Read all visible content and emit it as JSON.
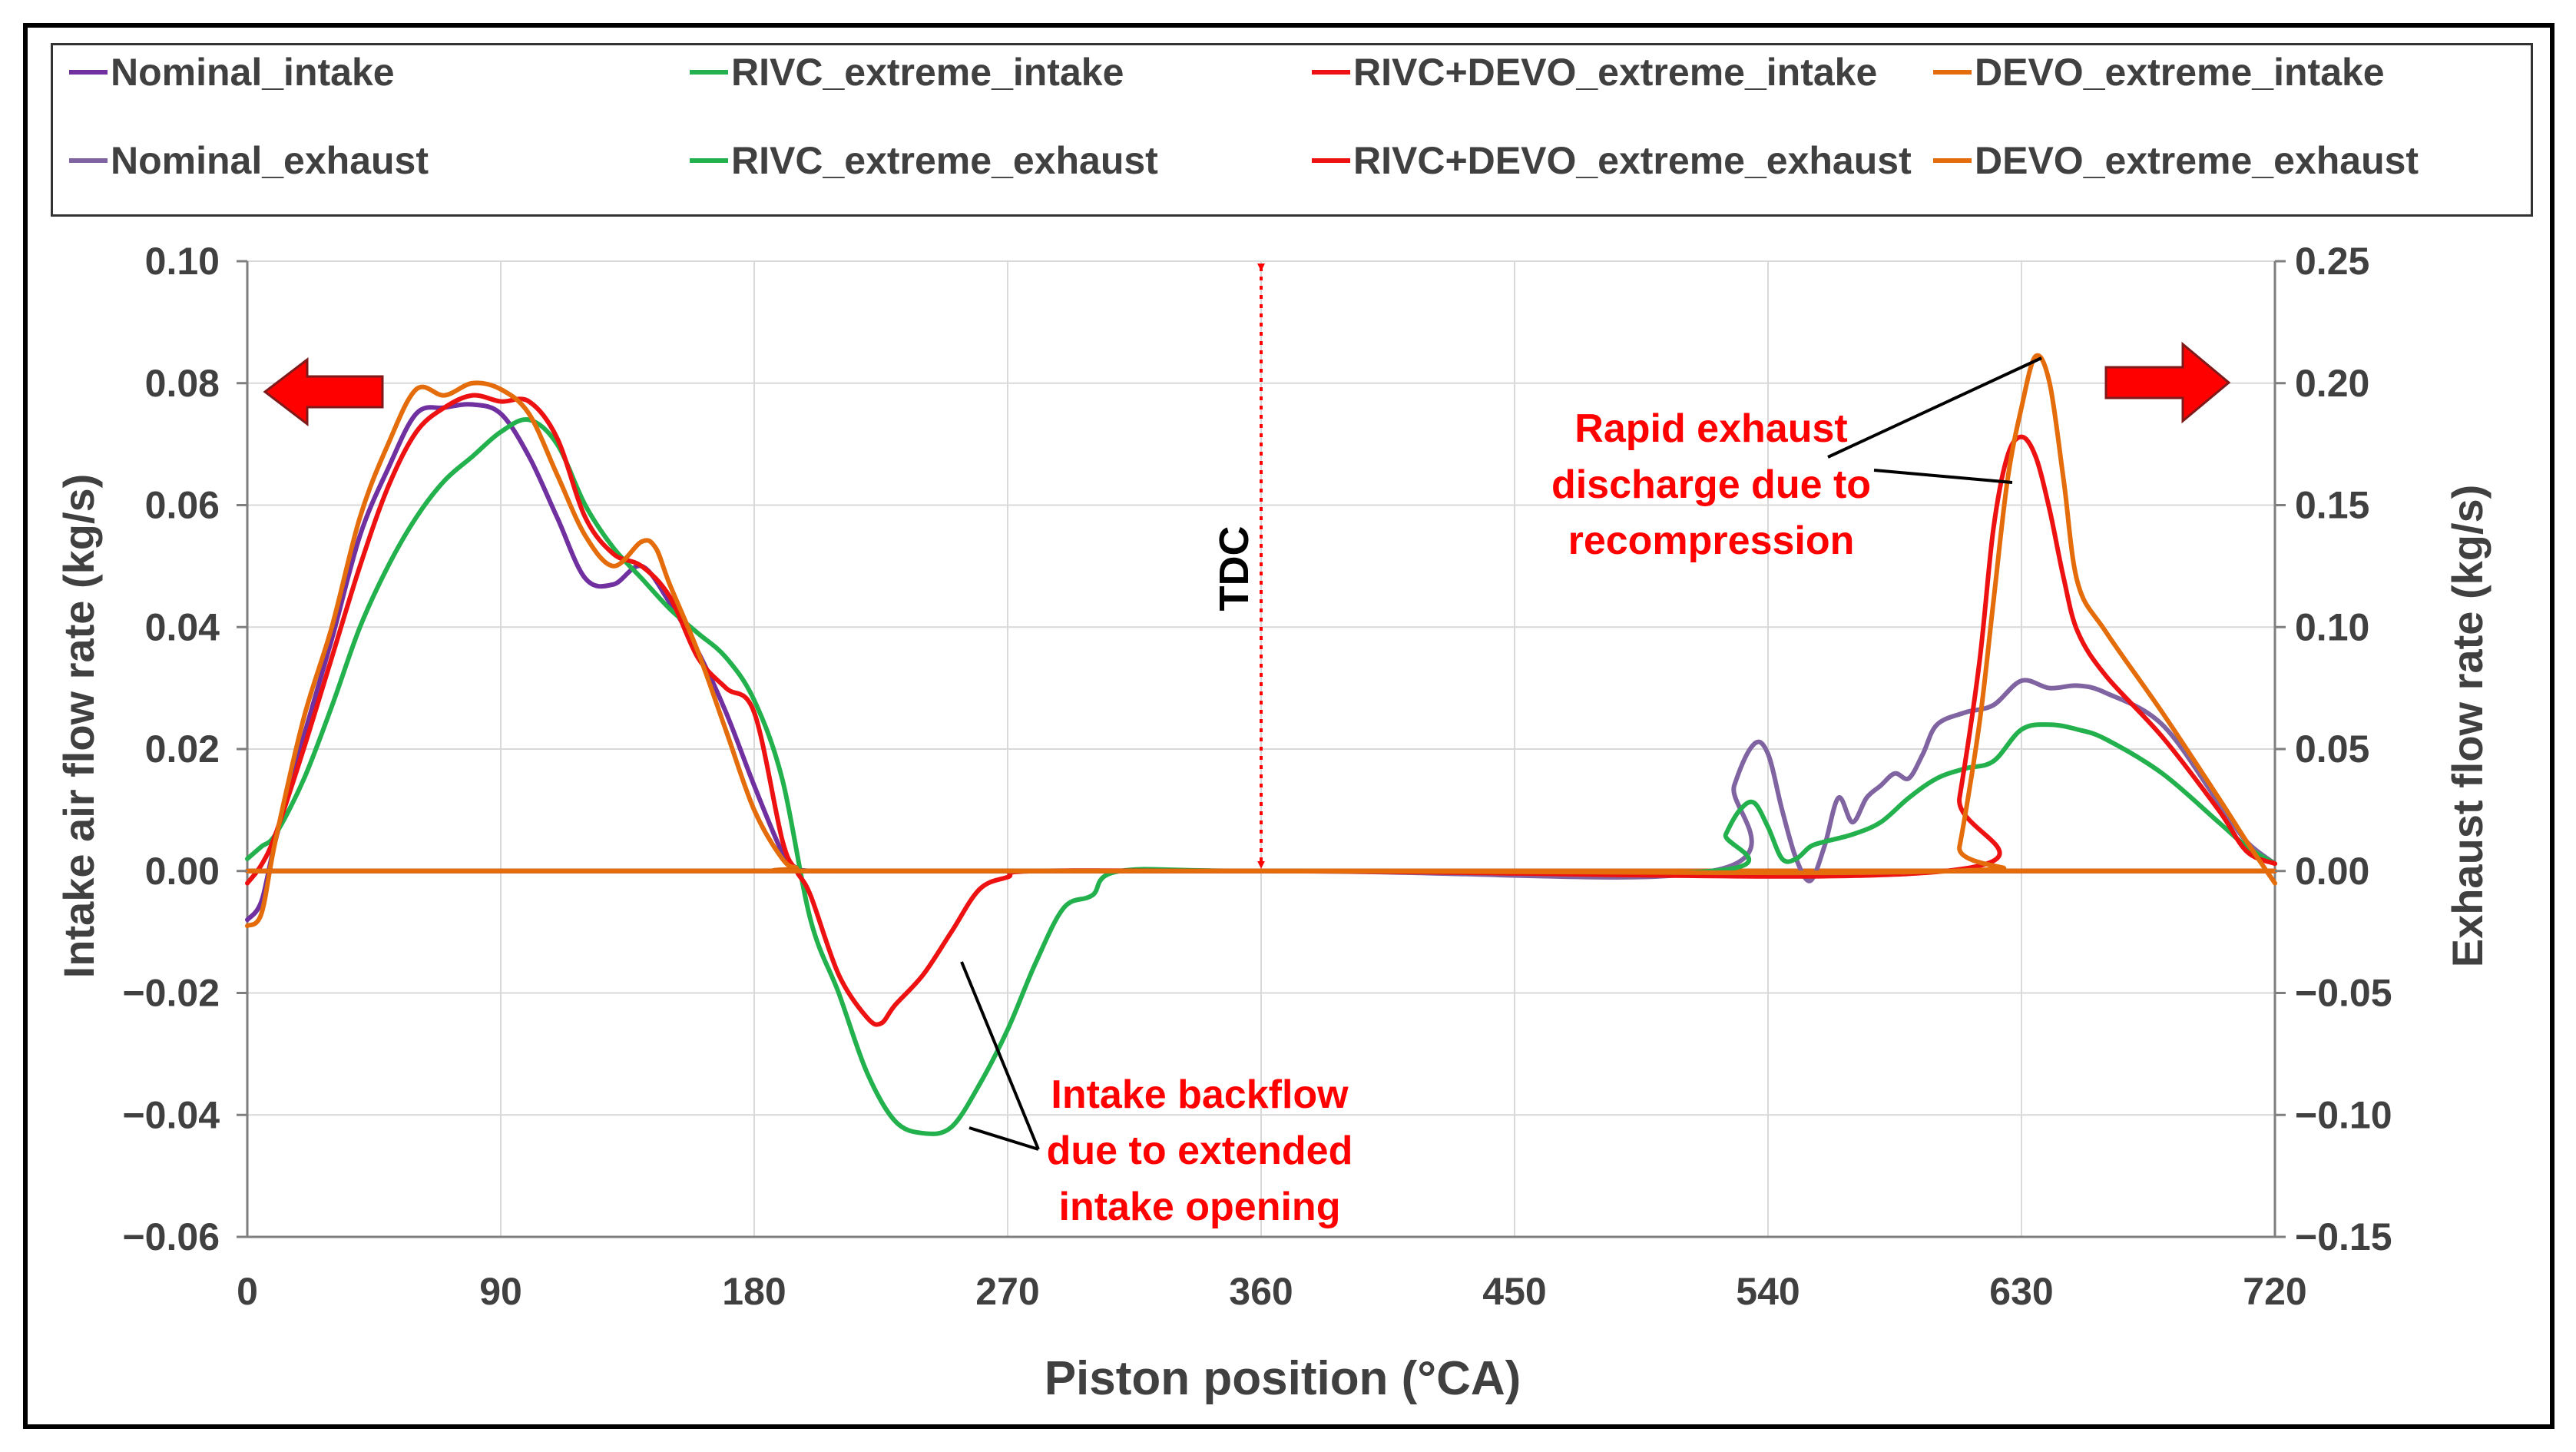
{
  "chart_data": {
    "type": "line",
    "xlabel": "Piston position (°CA)",
    "ylabel_left": "Intake air flow rate (kg/s)",
    "ylabel_right": "Exhaust flow rate (kg/s)",
    "xlim": [
      0,
      720
    ],
    "ylim_left": [
      -0.06,
      0.1
    ],
    "ylim_right": [
      -0.15,
      0.25
    ],
    "x_ticks": [
      "0",
      "90",
      "180",
      "270",
      "360",
      "450",
      "540",
      "630",
      "720"
    ],
    "y_ticks_left": [
      "0.10",
      "0.08",
      "0.06",
      "0.04",
      "0.02",
      "0.00",
      "−0.02",
      "−0.04",
      "−0.06"
    ],
    "y_ticks_right": [
      "0.25",
      "0.20",
      "0.15",
      "0.10",
      "0.05",
      "0.00",
      "−0.05",
      "−0.10",
      "−0.15"
    ],
    "grid": true,
    "legend_position": "top",
    "legend": [
      "Nominal_intake",
      "RIVC_extreme_intake",
      "RIVC+DEVO_extreme_intake",
      "DEVO_extreme_intake",
      "Nominal_exhaust",
      "RIVC_extreme_exhaust",
      "RIVC+DEVO_extreme_exhaust",
      "DEVO_extreme_exhaust"
    ],
    "colors": {
      "nominal_intake": "#7030a0",
      "nominal_exhaust": "#8064a2",
      "rivc": "#22b14c",
      "rivc_devo": "#ee1111",
      "devo": "#e46c0a",
      "annotation": "#ff0000"
    },
    "tdc_label": "TDC",
    "annotations": {
      "exhaust": [
        "Rapid exhaust",
        "discharge due to",
        "recompression"
      ],
      "intake": [
        "Intake backflow",
        "due to extended",
        "intake opening"
      ]
    },
    "series": [
      {
        "name": "Nominal_intake",
        "axis": "left",
        "x": [
          0,
          5,
          10,
          20,
          30,
          40,
          50,
          60,
          70,
          80,
          90,
          100,
          110,
          120,
          130,
          140,
          150,
          160,
          170,
          180,
          190,
          195,
          200,
          210,
          270,
          360,
          540,
          720
        ],
        "y": [
          -0.008,
          -0.005,
          0.005,
          0.022,
          0.038,
          0.055,
          0.066,
          0.075,
          0.076,
          0.0765,
          0.075,
          0.068,
          0.058,
          0.048,
          0.047,
          0.05,
          0.044,
          0.036,
          0.026,
          0.014,
          0.003,
          0.0005,
          0,
          0,
          0,
          0,
          0,
          0
        ]
      },
      {
        "name": "RIVC_extreme_intake",
        "axis": "left",
        "x": [
          0,
          5,
          10,
          20,
          30,
          40,
          50,
          60,
          70,
          80,
          90,
          100,
          110,
          120,
          130,
          140,
          150,
          160,
          170,
          180,
          190,
          200,
          210,
          220,
          230,
          240,
          250,
          260,
          270,
          280,
          290,
          300,
          310,
          360,
          540,
          720
        ],
        "y": [
          0.002,
          0.004,
          0.006,
          0.015,
          0.027,
          0.04,
          0.05,
          0.058,
          0.064,
          0.068,
          0.072,
          0.074,
          0.07,
          0.06,
          0.053,
          0.048,
          0.043,
          0.039,
          0.035,
          0.028,
          0.015,
          -0.008,
          -0.02,
          -0.033,
          -0.041,
          -0.043,
          -0.042,
          -0.035,
          -0.026,
          -0.015,
          -0.006,
          -0.004,
          0,
          0,
          0,
          0
        ]
      },
      {
        "name": "RIVC+DEVO_extreme_intake",
        "axis": "left",
        "x": [
          0,
          5,
          10,
          20,
          30,
          40,
          50,
          60,
          70,
          80,
          90,
          100,
          110,
          120,
          130,
          140,
          150,
          160,
          170,
          180,
          190,
          195,
          200,
          210,
          220,
          225,
          230,
          240,
          250,
          260,
          270,
          280,
          360,
          540,
          720
        ],
        "y": [
          -0.002,
          0.001,
          0.006,
          0.02,
          0.035,
          0.05,
          0.063,
          0.072,
          0.076,
          0.078,
          0.077,
          0.077,
          0.071,
          0.058,
          0.052,
          0.05,
          0.045,
          0.035,
          0.03,
          0.026,
          0.005,
          0,
          -0.004,
          -0.017,
          -0.024,
          -0.025,
          -0.022,
          -0.017,
          -0.01,
          -0.003,
          -0.001,
          0,
          0,
          0,
          0
        ]
      },
      {
        "name": "DEVO_extreme_intake",
        "axis": "left",
        "x": [
          0,
          5,
          10,
          20,
          30,
          40,
          50,
          60,
          70,
          80,
          90,
          100,
          110,
          120,
          130,
          140,
          145,
          150,
          160,
          170,
          180,
          190,
          195,
          200,
          360,
          540,
          720
        ],
        "y": [
          -0.009,
          -0.007,
          0.005,
          0.025,
          0.04,
          0.058,
          0.07,
          0.079,
          0.078,
          0.08,
          0.079,
          0.075,
          0.065,
          0.055,
          0.05,
          0.054,
          0.053,
          0.047,
          0.036,
          0.023,
          0.01,
          0.002,
          0.0005,
          0,
          0,
          0,
          0
        ]
      },
      {
        "name": "Nominal_exhaust",
        "axis": "right",
        "x": [
          0,
          360,
          520,
          528,
          535,
          540,
          545,
          550,
          555,
          560,
          565,
          570,
          575,
          580,
          585,
          590,
          595,
          600,
          610,
          620,
          630,
          640,
          650,
          660,
          680,
          700,
          710,
          720
        ],
        "y": [
          0,
          0,
          0,
          0.035,
          0.052,
          0.048,
          0.025,
          0.005,
          -0.004,
          0.01,
          0.03,
          0.02,
          0.03,
          0.035,
          0.04,
          0.038,
          0.048,
          0.06,
          0.065,
          0.068,
          0.078,
          0.075,
          0.076,
          0.073,
          0.06,
          0.028,
          0.012,
          0.003
        ]
      },
      {
        "name": "RIVC_extreme_exhaust",
        "axis": "right",
        "x": [
          0,
          360,
          520,
          525,
          530,
          535,
          540,
          545,
          550,
          555,
          560,
          570,
          580,
          590,
          600,
          610,
          620,
          630,
          640,
          650,
          660,
          680,
          700,
          710,
          720
        ],
        "y": [
          0,
          0,
          0,
          0.015,
          0.025,
          0.028,
          0.018,
          0.005,
          0.005,
          0.01,
          0.012,
          0.015,
          0.02,
          0.03,
          0.038,
          0.042,
          0.045,
          0.058,
          0.06,
          0.058,
          0.054,
          0.04,
          0.02,
          0.01,
          0.003
        ]
      },
      {
        "name": "RIVC+DEVO_extreme_exhaust",
        "axis": "right",
        "x": [
          0,
          360,
          603,
          608,
          615,
          620,
          625,
          630,
          635,
          640,
          645,
          650,
          660,
          680,
          700,
          710,
          720
        ],
        "y": [
          0,
          0,
          0,
          0.03,
          0.085,
          0.14,
          0.17,
          0.178,
          0.17,
          0.148,
          0.12,
          0.098,
          0.08,
          0.055,
          0.025,
          0.008,
          0.003
        ]
      },
      {
        "name": "DEVO_extreme_exhaust",
        "axis": "right",
        "x": [
          0,
          360,
          605,
          608,
          615,
          620,
          625,
          630,
          635,
          640,
          645,
          650,
          660,
          680,
          700,
          710,
          720
        ],
        "y": [
          0,
          0,
          0,
          0.01,
          0.06,
          0.11,
          0.16,
          0.19,
          0.211,
          0.2,
          0.16,
          0.118,
          0.098,
          0.065,
          0.03,
          0.012,
          -0.005
        ]
      }
    ]
  }
}
